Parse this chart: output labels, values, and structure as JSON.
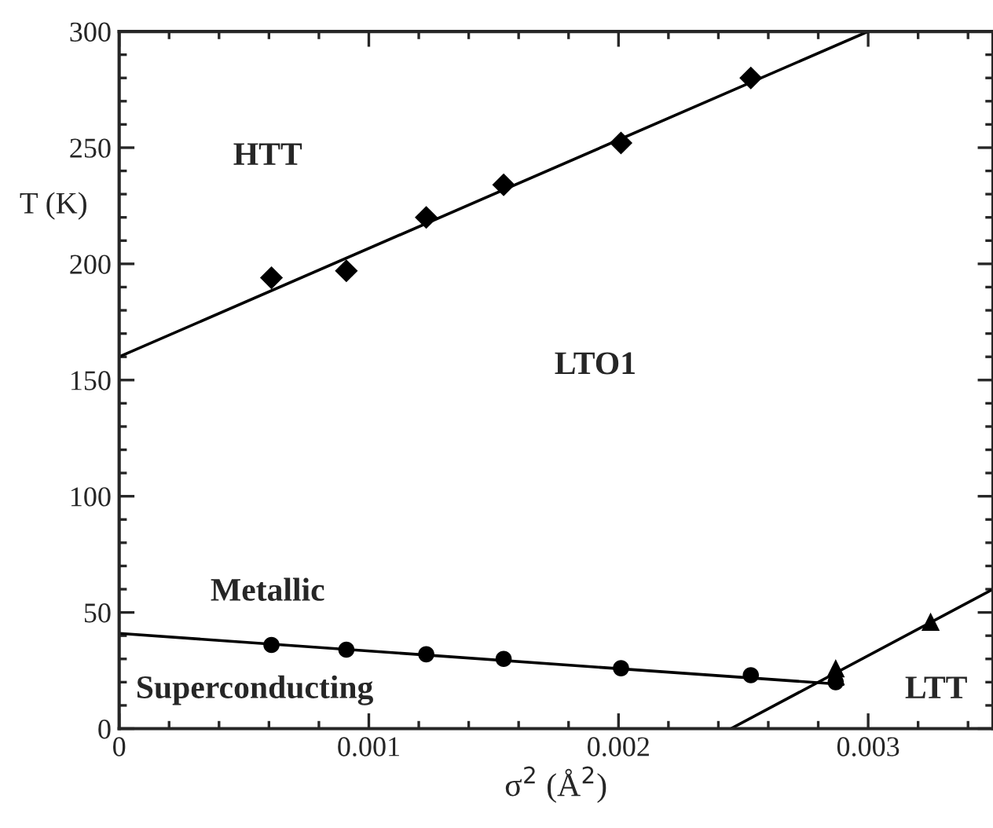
{
  "chart_data": {
    "type": "scatter",
    "xlabel": "σ$^{2}$ (Å$^{2}$)",
    "ylabel": "T (K)",
    "xlim": [
      0,
      0.0035
    ],
    "xticks": [
      0,
      0.001,
      0.002,
      0.003
    ],
    "ylim": [
      0,
      300
    ],
    "yticks": [
      0,
      50,
      100,
      150,
      200,
      250,
      300
    ],
    "grid": false,
    "legend": false,
    "series": [
      {
        "marker": "diamond",
        "color": "#000000",
        "x": [
          0.00061,
          0.00091,
          0.00123,
          0.00154,
          0.00201,
          0.00253
        ],
        "values": [
          194,
          197,
          220,
          234,
          252,
          280
        ]
      },
      {
        "marker": "circle",
        "color": "#000000",
        "x": [
          0.00061,
          0.00091,
          0.00123,
          0.00154,
          0.00201,
          0.00253,
          0.00287
        ],
        "values": [
          36,
          34,
          32,
          30,
          26,
          23,
          20
        ]
      },
      {
        "marker": "triangle",
        "color": "#000000",
        "x": [
          0.00287,
          0.00325
        ],
        "values": [
          26,
          46
        ]
      },
      {
        "type": "line",
        "marker": "none",
        "color": "#000000",
        "x": [
          0,
          0.003
        ],
        "values": [
          160,
          300
        ]
      },
      {
        "type": "line",
        "marker": "none",
        "color": "#000000",
        "x": [
          0,
          0.0029
        ],
        "values": [
          41,
          19
        ]
      },
      {
        "type": "line",
        "marker": "none",
        "color": "#000000",
        "x": [
          0.00245,
          0.0035
        ],
        "values": [
          0,
          60
        ]
      }
    ],
    "annotations": [
      "HTT",
      "LTO1",
      "Metallic",
      "Superconducting",
      "LTT"
    ]
  }
}
